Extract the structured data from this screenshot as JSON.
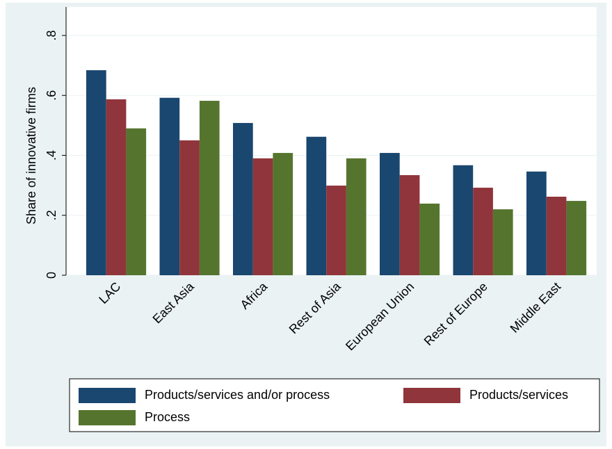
{
  "chart_data": {
    "type": "bar",
    "y_label": "Share of innovative firms",
    "categories": [
      "LAC",
      "East Asia",
      "Africa",
      "Rest of Asia",
      "European Union",
      "Rest of Europe",
      "Middle East"
    ],
    "series": [
      {
        "name": "Products/services and/or process",
        "color": "#1a476f",
        "values": [
          0.684,
          0.592,
          0.508,
          0.462,
          0.408,
          0.367,
          0.346
        ]
      },
      {
        "name": "Products/services",
        "color": "#90353b",
        "values": [
          0.587,
          0.45,
          0.39,
          0.299,
          0.334,
          0.292,
          0.262
        ]
      },
      {
        "name": "Process",
        "color": "#55752f",
        "values": [
          0.49,
          0.582,
          0.408,
          0.39,
          0.239,
          0.22,
          0.248
        ]
      }
    ],
    "ylim": [
      0,
      0.8
    ],
    "yticks": [
      0,
      {
        "value": 0.2,
        "label": ".2"
      },
      {
        "value": 0.4,
        "label": ".4"
      },
      {
        "value": 0.6,
        "label": ".6"
      },
      {
        "value": 0.8,
        "label": ".8"
      }
    ],
    "grid": true
  }
}
